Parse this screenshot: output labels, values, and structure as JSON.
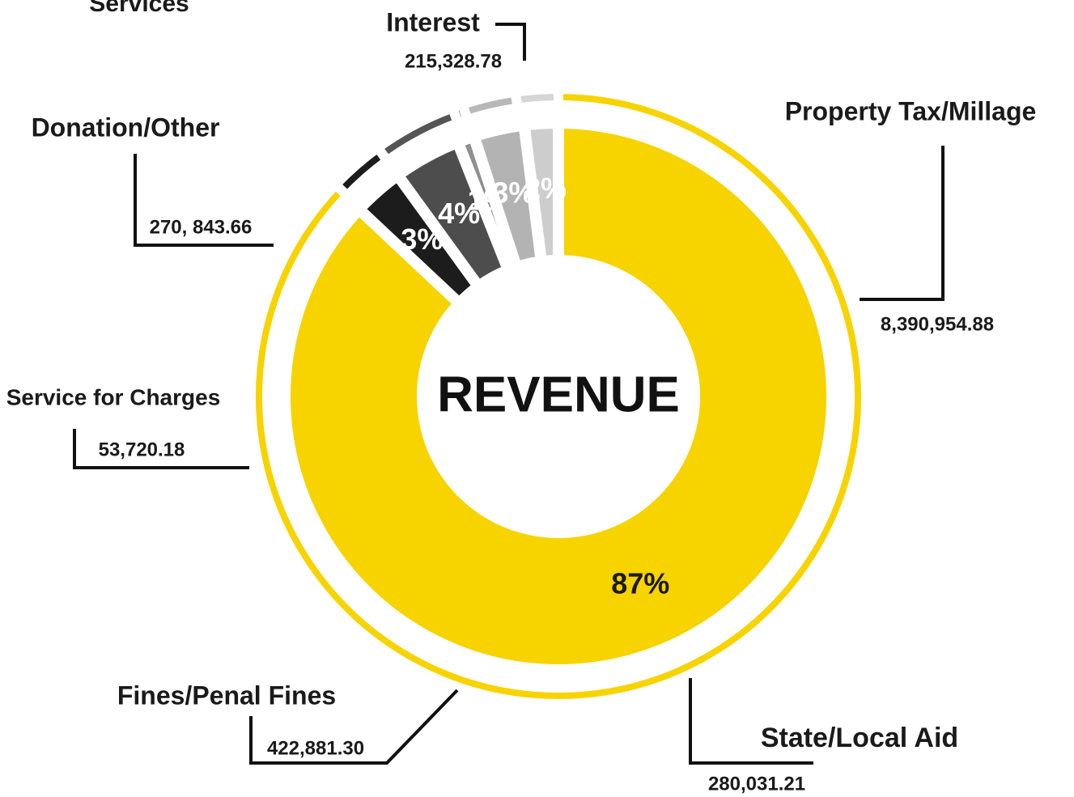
{
  "chart_data": {
    "type": "donut",
    "heading": "Services",
    "center_label": "REVENUE",
    "categories": [
      "Property Tax/Millage",
      "State/Local Aid",
      "Fines/Penal Fines",
      "Service for Charges",
      "Donation/Other",
      "Interest"
    ],
    "values": [
      87,
      3,
      4,
      1,
      3,
      2
    ],
    "value_labels": [
      "87%",
      "3%",
      "4%",
      "1%",
      "3%",
      "2%"
    ],
    "amounts": [
      8390954.88,
      280031.21,
      422881.3,
      53720.18,
      270843.66,
      215328.78
    ],
    "amount_labels": [
      "8,390,954.88",
      "280,031.21",
      "422,881.30",
      "53,720.18",
      "270, 843.66",
      "215,328.78"
    ],
    "colors": [
      "#f7d300",
      "#1c1c1c",
      "#4d4d4d",
      "#8f8f8f",
      "#b3b3b3",
      "#cdcdcd"
    ],
    "outer_colors": [
      "#f7d300",
      "#1c1c1c",
      "#555555",
      "#a3a3a3",
      "#b8b8b8",
      "#d6d6d6"
    ],
    "value_label_colors": [
      "#1a1a1a",
      "#ffffff",
      "#ffffff",
      "#ffffff",
      "#ffffff",
      "#ffffff"
    ]
  }
}
